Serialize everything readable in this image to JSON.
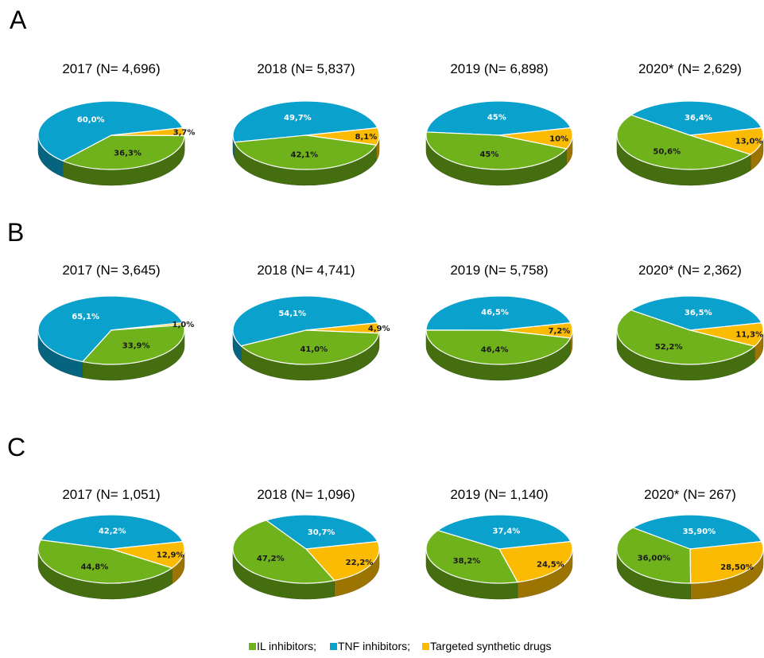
{
  "legend": [
    {
      "label": "IL inhibitors;",
      "color": "#70b21c"
    },
    {
      "label": "TNF inhibitors;",
      "color": "#0aa1cd"
    },
    {
      "label": "Targeted synthetic drugs",
      "color": "#fbbb03"
    }
  ],
  "chart_data": [
    {
      "panel": "A",
      "type": "pie",
      "series_names": [
        "IL inhibitors",
        "TNF inhibitors",
        "Targeted synthetic drugs"
      ],
      "pies": [
        {
          "title": "2017 (N= 4,696)",
          "values": [
            36.3,
            60.0,
            3.7
          ],
          "labels": [
            "36,3%",
            "60,0%",
            "3,7%"
          ]
        },
        {
          "title": "2018 (N= 5,837)",
          "values": [
            42.1,
            49.7,
            8.1
          ],
          "labels": [
            "42,1%",
            "49,7%",
            "8,1%"
          ]
        },
        {
          "title": "2019 (N= 6,898)",
          "values": [
            45,
            45,
            10
          ],
          "labels": [
            "45%",
            "45%",
            "10%"
          ]
        },
        {
          "title": "2020* (N= 2,629)",
          "values": [
            50.6,
            36.4,
            13.0
          ],
          "labels": [
            "50,6%",
            "36,4%",
            "13,0%"
          ]
        }
      ]
    },
    {
      "panel": "B",
      "type": "pie",
      "series_names": [
        "IL inhibitors",
        "TNF inhibitors",
        "Targeted synthetic drugs"
      ],
      "pies": [
        {
          "title": "2017 (N= 3,645)",
          "values": [
            33.9,
            65.1,
            1.0
          ],
          "labels": [
            "33,9%",
            "65,1%",
            "1,0%"
          ]
        },
        {
          "title": "2018 (N= 4,741)",
          "values": [
            41.0,
            54.1,
            4.9
          ],
          "labels": [
            "41,0%",
            "54,1%",
            "4,9%"
          ]
        },
        {
          "title": "2019 (N= 5,758)",
          "values": [
            46.4,
            46.5,
            7.2
          ],
          "labels": [
            "46,4%",
            "46,5%",
            "7,2%"
          ]
        },
        {
          "title": "2020* (N= 2,362)",
          "values": [
            52.2,
            36.5,
            11.3
          ],
          "labels": [
            "52,2%",
            "36,5%",
            "11,3%"
          ]
        }
      ]
    },
    {
      "panel": "C",
      "type": "pie",
      "series_names": [
        "IL inhibitors",
        "TNF inhibitors",
        "Targeted synthetic drugs"
      ],
      "pies": [
        {
          "title": "2017 (N= 1,051)",
          "values": [
            44.8,
            42.2,
            12.9
          ],
          "labels": [
            "44,8%",
            "42,2%",
            "12,9%"
          ]
        },
        {
          "title": "2018 (N= 1,096)",
          "values": [
            47.2,
            30.7,
            22.2
          ],
          "labels": [
            "47,2%",
            "30,7%",
            "22,2%"
          ]
        },
        {
          "title": "2019 (N= 1,140)",
          "values": [
            38.2,
            37.4,
            24.5
          ],
          "labels": [
            "38,2%",
            "37,4%",
            "24,5%"
          ]
        },
        {
          "title": "2020* (N= 267)",
          "values": [
            36.0,
            35.9,
            28.5
          ],
          "labels": [
            "36,00%",
            "35,90%",
            "28,50%"
          ]
        }
      ]
    }
  ]
}
